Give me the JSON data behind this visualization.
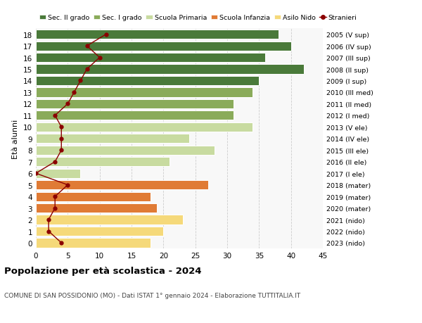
{
  "ages": [
    0,
    1,
    2,
    3,
    4,
    5,
    6,
    7,
    8,
    9,
    10,
    11,
    12,
    13,
    14,
    15,
    16,
    17,
    18
  ],
  "bar_values": [
    18,
    20,
    23,
    19,
    18,
    27,
    7,
    21,
    28,
    24,
    34,
    31,
    31,
    34,
    35,
    42,
    36,
    40,
    38
  ],
  "bar_colors": [
    "#f5d97a",
    "#f5d97a",
    "#f5d97a",
    "#e07b35",
    "#e07b35",
    "#e07b35",
    "#c8dba0",
    "#c8dba0",
    "#c8dba0",
    "#c8dba0",
    "#c8dba0",
    "#8aab5a",
    "#8aab5a",
    "#8aab5a",
    "#4a7a3a",
    "#4a7a3a",
    "#4a7a3a",
    "#4a7a3a",
    "#4a7a3a"
  ],
  "stranieri_values": [
    4,
    2,
    2,
    3,
    3,
    5,
    0,
    3,
    4,
    4,
    4,
    3,
    5,
    6,
    7,
    8,
    10,
    8,
    11
  ],
  "right_labels": [
    "2023 (nido)",
    "2022 (nido)",
    "2021 (nido)",
    "2020 (mater)",
    "2019 (mater)",
    "2018 (mater)",
    "2017 (I ele)",
    "2016 (II ele)",
    "2015 (III ele)",
    "2014 (IV ele)",
    "2013 (V ele)",
    "2012 (I med)",
    "2011 (II med)",
    "2010 (III med)",
    "2009 (I sup)",
    "2008 (II sup)",
    "2007 (III sup)",
    "2006 (IV sup)",
    "2005 (V sup)"
  ],
  "legend_labels": [
    "Sec. II grado",
    "Sec. I grado",
    "Scuola Primaria",
    "Scuola Infanzia",
    "Asilo Nido",
    "Stranieri"
  ],
  "legend_colors": [
    "#4a7a3a",
    "#8aab5a",
    "#c8dba0",
    "#e07b35",
    "#f5d97a",
    "#8b0000"
  ],
  "ylabel_left": "Età alunni",
  "xlim": [
    0,
    45
  ],
  "xticks": [
    0,
    5,
    10,
    15,
    20,
    25,
    30,
    35,
    40,
    45
  ],
  "title": "Popolazione per età scolastica - 2024",
  "subtitle": "COMUNE DI SAN POSSIDONIO (MO) - Dati ISTAT 1° gennaio 2024 - Elaborazione TUTTITALIA.IT",
  "bg_color": "#ffffff",
  "plot_bg_color": "#f8f8f8",
  "grid_color": "#cccccc",
  "bar_edge_color": "white",
  "stranieri_line_color": "#8b0000",
  "stranieri_dot_color": "#8b0000"
}
